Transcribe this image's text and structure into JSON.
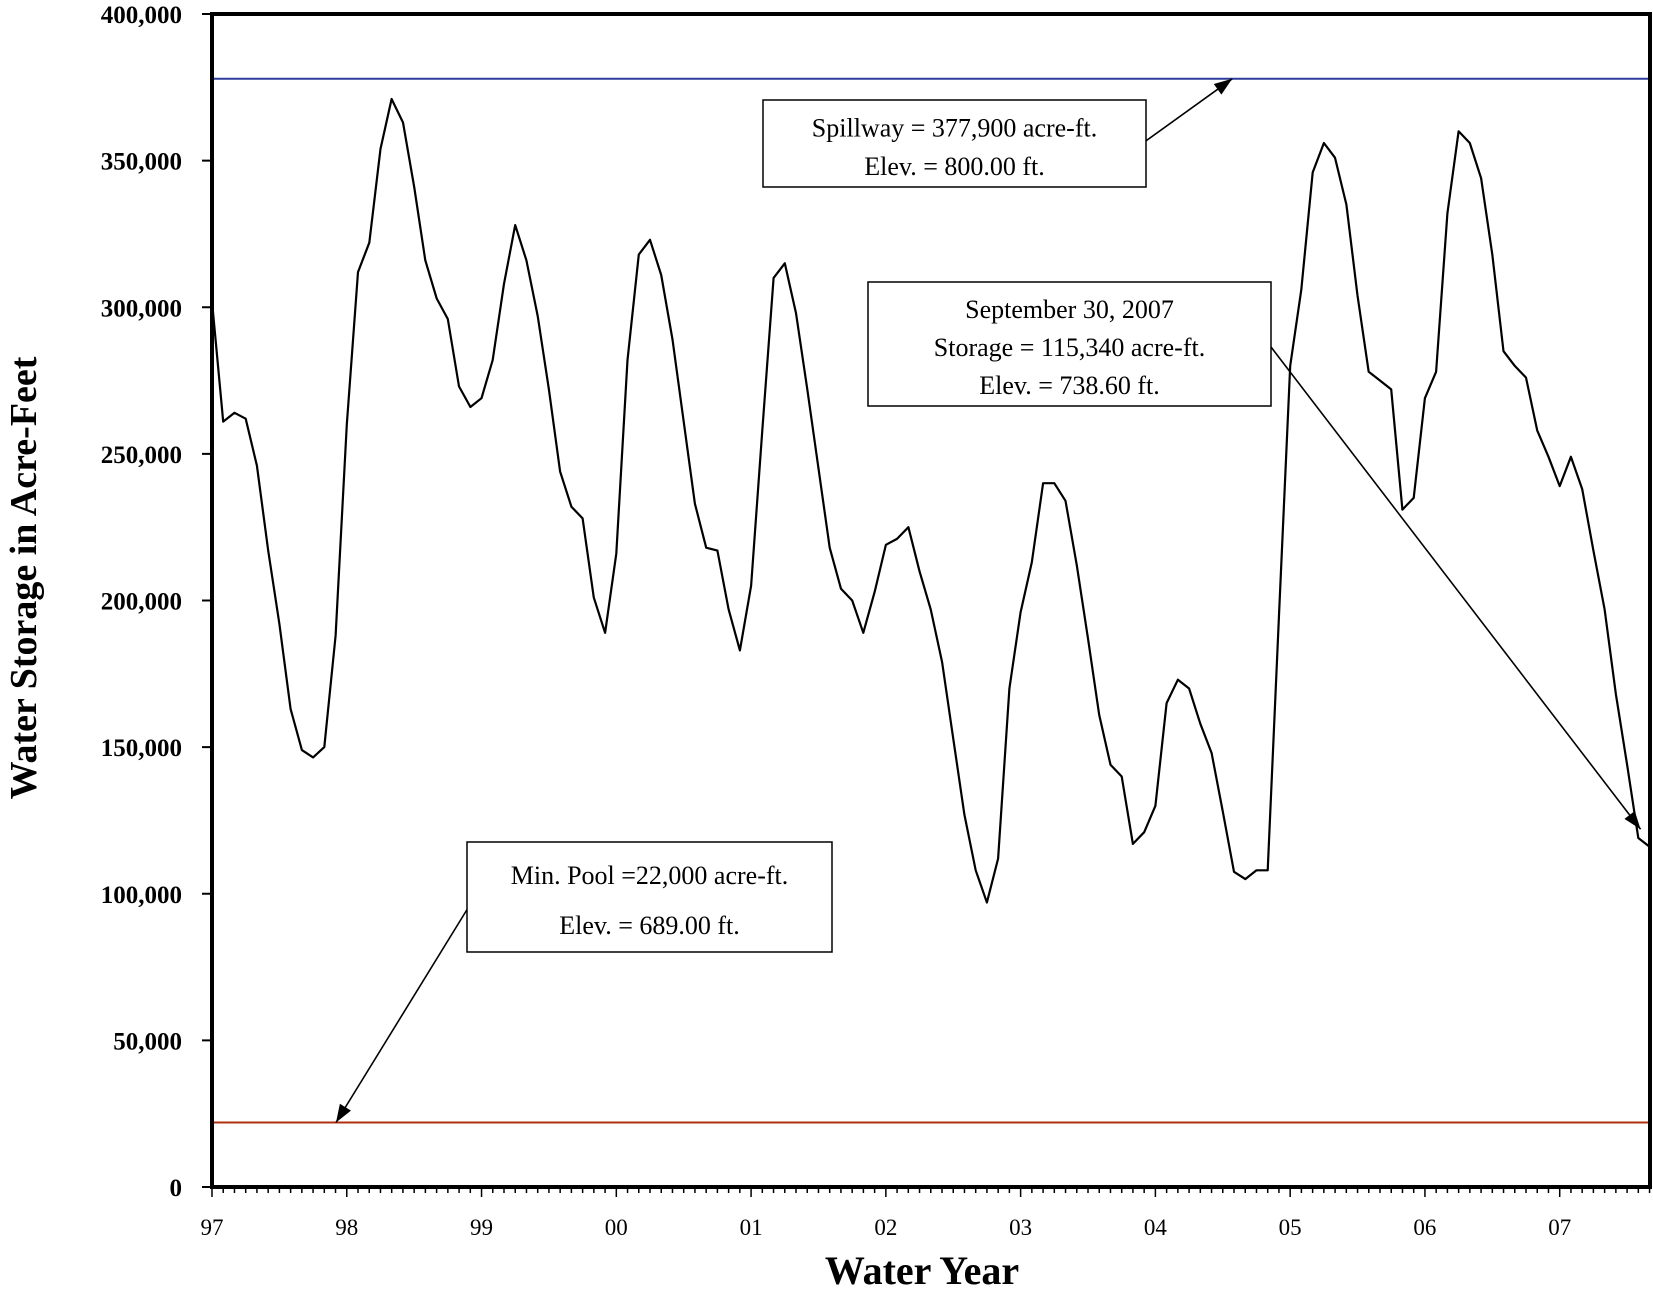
{
  "chart_data": {
    "type": "line",
    "xlabel": "Water Year",
    "ylabel": "Water Storage in Acre-Feet",
    "xlim": [
      0,
      10.67
    ],
    "ylim": [
      0,
      400000
    ],
    "x_ticks": [
      {
        "x": 0,
        "label": "97"
      },
      {
        "x": 1,
        "label": "98"
      },
      {
        "x": 2,
        "label": "99"
      },
      {
        "x": 3,
        "label": "00"
      },
      {
        "x": 4,
        "label": "01"
      },
      {
        "x": 5,
        "label": "02"
      },
      {
        "x": 6,
        "label": "03"
      },
      {
        "x": 7,
        "label": "04"
      },
      {
        "x": 8,
        "label": "05"
      },
      {
        "x": 9,
        "label": "06"
      },
      {
        "x": 10,
        "label": "07"
      }
    ],
    "y_ticks": [
      {
        "v": 0,
        "label": "0"
      },
      {
        "v": 50000,
        "label": "50,000"
      },
      {
        "v": 100000,
        "label": "100,000"
      },
      {
        "v": 150000,
        "label": "150,000"
      },
      {
        "v": 200000,
        "label": "200,000"
      },
      {
        "v": 250000,
        "label": "250,000"
      },
      {
        "v": 300000,
        "label": "300,000"
      },
      {
        "v": 350000,
        "label": "350,000"
      },
      {
        "v": 400000,
        "label": "400,000"
      }
    ],
    "reference_lines": [
      {
        "value": 377900,
        "color": "#2e3d9a"
      },
      {
        "value": 22000,
        "color": "#b03010"
      }
    ],
    "series": [
      {
        "color": "#000000",
        "x": [
          0,
          0.083,
          0.167,
          0.25,
          0.333,
          0.417,
          0.5,
          0.583,
          0.667,
          0.75,
          0.833,
          0.917,
          1,
          1.083,
          1.167,
          1.25,
          1.333,
          1.417,
          1.5,
          1.583,
          1.667,
          1.75,
          1.833,
          1.917,
          2,
          2.083,
          2.167,
          2.25,
          2.333,
          2.417,
          2.5,
          2.583,
          2.667,
          2.75,
          2.833,
          2.917,
          3,
          3.083,
          3.167,
          3.25,
          3.333,
          3.417,
          3.5,
          3.583,
          3.667,
          3.75,
          3.833,
          3.917,
          4,
          4.083,
          4.167,
          4.25,
          4.333,
          4.417,
          4.5,
          4.583,
          4.667,
          4.75,
          4.833,
          4.917,
          5,
          5.083,
          5.167,
          5.25,
          5.333,
          5.417,
          5.5,
          5.583,
          5.667,
          5.75,
          5.833,
          5.917,
          6,
          6.083,
          6.167,
          6.25,
          6.333,
          6.417,
          6.5,
          6.583,
          6.667,
          6.75,
          6.833,
          6.917,
          7,
          7.083,
          7.167,
          7.25,
          7.333,
          7.417,
          7.5,
          7.583,
          7.667,
          7.75,
          7.833,
          7.917,
          8,
          8.083,
          8.167,
          8.25,
          8.333,
          8.417,
          8.5,
          8.583,
          8.667,
          8.75,
          8.833,
          8.917,
          9,
          9.083,
          9.167,
          9.25,
          9.333,
          9.417,
          9.5,
          9.583,
          9.667,
          9.75,
          9.833,
          9.917,
          10,
          10.083,
          10.167,
          10.25,
          10.333,
          10.417,
          10.5,
          10.583,
          10.667
        ],
        "y": [
          302000,
          261000,
          264000,
          262000,
          246000,
          217000,
          192000,
          163000,
          149000,
          146500,
          150000,
          188000,
          260000,
          312000,
          322000,
          354000,
          371000,
          363000,
          341000,
          316000,
          303000,
          296000,
          273000,
          266000,
          269000,
          282000,
          308000,
          328000,
          316000,
          297000,
          272000,
          244000,
          232000,
          228000,
          201000,
          189000,
          216000,
          282000,
          318000,
          323000,
          311000,
          289000,
          261000,
          233000,
          218000,
          217000,
          197000,
          183000,
          205000,
          258000,
          310000,
          315000,
          298000,
          272000,
          245000,
          218000,
          204000,
          200000,
          189000,
          203000,
          219000,
          221000,
          225000,
          210000,
          197000,
          179000,
          153000,
          127000,
          108000,
          97000,
          112000,
          170000,
          196000,
          213000,
          240000,
          240000,
          234000,
          212000,
          187000,
          161000,
          144000,
          140000,
          117000,
          121000,
          130000,
          165000,
          173000,
          170000,
          158000,
          148000,
          128000,
          107500,
          105000,
          108000,
          108000,
          195000,
          280000,
          306000,
          346000,
          356000,
          351000,
          335000,
          304000,
          278000,
          275000,
          272000,
          231000,
          235000,
          269000,
          278000,
          332000,
          360000,
          356000,
          344000,
          318000,
          285000,
          280000,
          276000,
          258000,
          249000,
          239000,
          249000,
          238000,
          217000,
          197000,
          168000,
          144000,
          119000,
          116000
        ]
      }
    ],
    "annotations": [
      {
        "lines": [
          "Spillway = 377,900 acre-ft.",
          "Elev. = 800.00 ft."
        ],
        "target_x": 7.57,
        "target_y": 377900
      },
      {
        "lines": [
          "September 30, 2007",
          "Storage = 115,340 acre-ft.",
          "Elev. = 738.60 ft."
        ],
        "target_x": 10.6,
        "target_y": 122000
      },
      {
        "lines": [
          "Min. Pool =22,000 acre-ft.",
          "Elev. = 689.00 ft."
        ],
        "target_x": 0.92,
        "target_y": 22000
      }
    ]
  }
}
